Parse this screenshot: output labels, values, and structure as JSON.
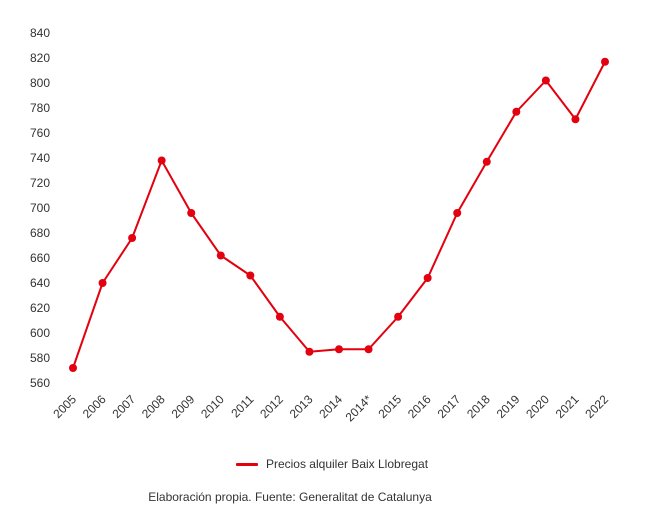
{
  "chart_data": {
    "type": "line",
    "title": "",
    "xlabel": "",
    "ylabel": "",
    "categories": [
      "2005",
      "2006",
      "2007",
      "2008",
      "2009",
      "2010",
      "2011",
      "2012",
      "2013",
      "2014",
      "2014*",
      "2015",
      "2016",
      "2017",
      "2018",
      "2019",
      "2020",
      "2021",
      "2022"
    ],
    "series": [
      {
        "name": "Precios alquiler Baix Llobregat",
        "color": "#e3000f",
        "values": [
          572,
          640,
          676,
          738,
          696,
          662,
          646,
          613,
          585,
          587,
          587,
          613,
          644,
          696,
          737,
          777,
          802,
          771,
          817
        ]
      }
    ],
    "ylim": [
      560,
      840
    ],
    "yticks": [
      560,
      580,
      600,
      620,
      640,
      660,
      680,
      700,
      720,
      740,
      760,
      780,
      800,
      820,
      840
    ],
    "grid": false,
    "legend_position": "bottom"
  },
  "source_text": "Elaboración propia. Fuente: Generalitat de Catalunya"
}
